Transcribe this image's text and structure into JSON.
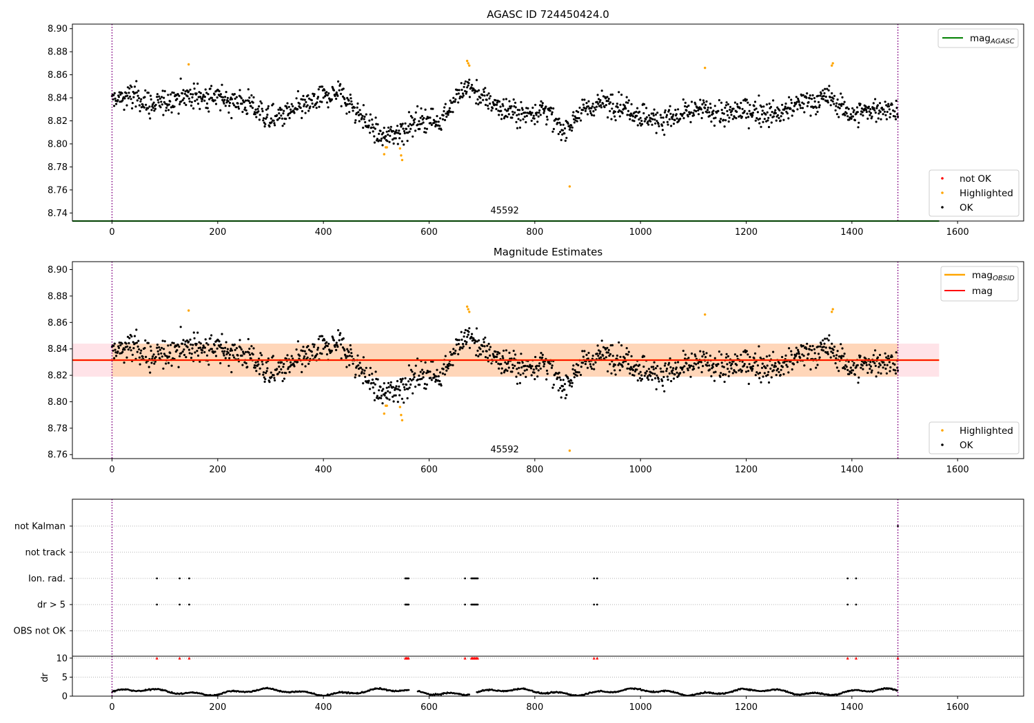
{
  "chart_data": [
    {
      "id": "top",
      "type": "scatter",
      "title": "AGASC ID 724450424.0",
      "xlim": [
        -75,
        1725
      ],
      "ylim": [
        8.733,
        8.904
      ],
      "xticks": [
        0,
        200,
        400,
        600,
        800,
        1000,
        1200,
        1400,
        1600
      ],
      "yticks": [
        8.74,
        8.76,
        8.78,
        8.8,
        8.82,
        8.84,
        8.86,
        8.88,
        8.9
      ],
      "obs_boundaries": [
        0,
        1487
      ],
      "obsid_label": {
        "text": "45592",
        "x": 743,
        "y": 8.736
      },
      "reference_line": {
        "name": "mag_AGASC",
        "y": 8.733,
        "x": [
          -75,
          1565
        ],
        "color": "#008000"
      },
      "legend_lines": [
        {
          "label": "mag",
          "sub": "AGASC",
          "color": "#008000"
        }
      ],
      "legend_points": [
        {
          "label": "not OK",
          "color": "#ff0000"
        },
        {
          "label": "Highlighted",
          "color": "#ffa500"
        },
        {
          "label": "OK",
          "color": "#000000"
        }
      ],
      "highlighted_points": [
        [
          145,
          8.869
        ],
        [
          515,
          8.791
        ],
        [
          518,
          8.797
        ],
        [
          520,
          8.797
        ],
        [
          545,
          8.796
        ],
        [
          547,
          8.79
        ],
        [
          549,
          8.786
        ],
        [
          672,
          8.872
        ],
        [
          674,
          8.87
        ],
        [
          676,
          8.868
        ],
        [
          866,
          8.763
        ],
        [
          1122,
          8.866
        ],
        [
          1362,
          8.868
        ],
        [
          1364,
          8.87
        ]
      ],
      "ok_points_model": "dense time series of ~1480 points, mean 8.831, scatter ~0.011"
    },
    {
      "id": "middle",
      "type": "scatter",
      "title": "Magnitude Estimates",
      "xlim": [
        -75,
        1725
      ],
      "ylim": [
        8.757,
        8.906
      ],
      "xticks": [
        0,
        200,
        400,
        600,
        800,
        1000,
        1200,
        1400,
        1600
      ],
      "yticks": [
        8.76,
        8.78,
        8.8,
        8.82,
        8.84,
        8.86,
        8.88,
        8.9
      ],
      "obs_boundaries": [
        0,
        1487
      ],
      "obsid_label": {
        "text": "45592",
        "x": 743,
        "y": 8.76
      },
      "mag_line": {
        "y": 8.8315,
        "x": [
          -75,
          1565
        ],
        "color": "#ff0000"
      },
      "mag_band": {
        "y": [
          8.819,
          8.844
        ],
        "x": [
          -75,
          1565
        ],
        "color": "#ffc0cb"
      },
      "obsid_band": {
        "y": [
          8.819,
          8.844
        ],
        "x": [
          0,
          1487
        ],
        "color": "#ffa500"
      },
      "legend_lines": [
        {
          "label": "mag",
          "sub": "OBSID",
          "color": "#ffa500"
        },
        {
          "label": "mag",
          "sub": "",
          "color": "#ff0000"
        }
      ],
      "legend_points": [
        {
          "label": "Highlighted",
          "color": "#ffa500"
        },
        {
          "label": "OK",
          "color": "#000000"
        }
      ]
    },
    {
      "id": "flags",
      "type": "scatter",
      "xlim": [
        -75,
        1725
      ],
      "categories": [
        "not Kalman",
        "not track",
        "Ion. rad.",
        "dr > 5",
        "OBS not OK"
      ],
      "obs_boundaries": [
        0,
        1487
      ],
      "flag_points": {
        "not Kalman": [
          1487
        ],
        "not track": [],
        "Ion. rad.": [
          85,
          128,
          146,
          555,
          557,
          559,
          561,
          668,
          680,
          682,
          684,
          686,
          688,
          690,
          692,
          912,
          918,
          1392,
          1408
        ],
        "dr > 5": [
          85,
          128,
          146,
          555,
          557,
          559,
          561,
          668,
          680,
          682,
          684,
          686,
          688,
          690,
          692,
          912,
          918,
          1392,
          1408
        ],
        "OBS not OK": []
      }
    },
    {
      "id": "dr",
      "type": "scatter",
      "ylabel": "dr",
      "xlim": [
        -75,
        1725
      ],
      "ylim": [
        0,
        10.5
      ],
      "xticks": [
        0,
        200,
        400,
        600,
        800,
        1000,
        1200,
        1400,
        1600
      ],
      "yticks": [
        0,
        5,
        10
      ],
      "obs_boundaries": [
        0,
        1487
      ],
      "clipped_points": [
        85,
        128,
        146,
        555,
        557,
        559,
        561,
        668,
        680,
        682,
        684,
        686,
        688,
        690,
        692,
        912,
        918,
        1392,
        1408,
        1487
      ],
      "clipped_value": 10,
      "dr_model": "continuous track between 0 and ~2.2 with gaps at 560-580 and 675-690"
    }
  ]
}
